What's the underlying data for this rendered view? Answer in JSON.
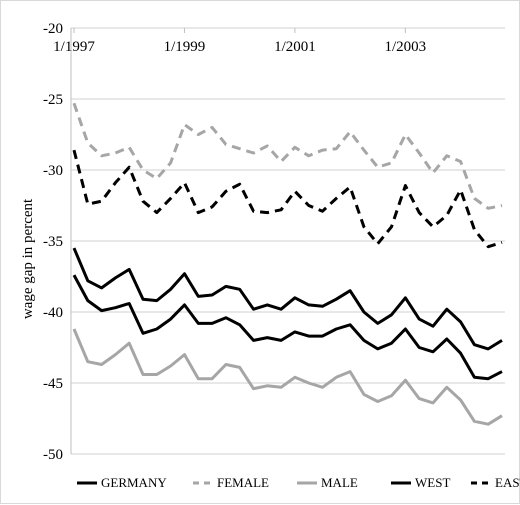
{
  "chart_data": {
    "type": "line",
    "title": "",
    "xlabel": "",
    "ylabel": "wage gap in percent",
    "ylim": [
      -50,
      -20
    ],
    "yticks": [
      -20,
      -25,
      -30,
      -35,
      -40,
      -45,
      -50
    ],
    "ytick_labels": [
      "-20",
      "-25",
      "-30",
      "-35",
      "-40",
      "-45",
      "-50"
    ],
    "xtick_labels": [
      "1/1997",
      "1/1999",
      "1/2001",
      "1/2003"
    ],
    "x_axis_position": "top",
    "grid": "horizontal",
    "legend_position": "bottom",
    "colors": {
      "GERMANY": "#000000",
      "FEMALE": "#a6a6a6",
      "MALE": "#a6a6a6",
      "WEST": "#000000",
      "EAST": "#000000"
    },
    "series": [
      {
        "name": "GERMANY",
        "style": "solid",
        "values": [
          -35.5,
          -37.8,
          -38.3,
          -37.6,
          -37.0,
          -39.1,
          -39.2,
          -38.4,
          -37.3,
          -38.9,
          -38.8,
          -38.2,
          -38.4,
          -39.8,
          -39.5,
          -39.8,
          -39.0,
          -39.5,
          -39.6,
          -39.1,
          -38.5,
          -40.0,
          -40.8,
          -40.2,
          -39.0,
          -40.5,
          -41.0,
          -39.8,
          -40.7,
          -42.3,
          -42.6,
          -42.0
        ]
      },
      {
        "name": "FEMALE",
        "style": "dashed",
        "values": [
          -25.3,
          -28.1,
          -29.0,
          -28.8,
          -28.4,
          -30.0,
          -30.6,
          -29.5,
          -26.8,
          -27.5,
          -27.0,
          -28.2,
          -28.5,
          -28.8,
          -28.3,
          -29.4,
          -28.4,
          -29.0,
          -28.6,
          -28.5,
          -27.3,
          -28.6,
          -29.8,
          -29.5,
          -27.5,
          -28.8,
          -30.2,
          -29.0,
          -29.4,
          -32.0,
          -32.7,
          -32.5
        ]
      },
      {
        "name": "MALE",
        "style": "solid",
        "values": [
          -41.2,
          -43.5,
          -43.7,
          -43.0,
          -42.2,
          -44.4,
          -44.4,
          -43.8,
          -43.0,
          -44.7,
          -44.7,
          -43.7,
          -43.9,
          -45.4,
          -45.2,
          -45.3,
          -44.6,
          -45.0,
          -45.3,
          -44.6,
          -44.2,
          -45.8,
          -46.3,
          -45.9,
          -44.8,
          -46.1,
          -46.4,
          -45.3,
          -46.2,
          -47.7,
          -47.9,
          -47.3
        ]
      },
      {
        "name": "WEST",
        "style": "solid",
        "values": [
          -37.4,
          -39.2,
          -39.9,
          -39.7,
          -39.4,
          -41.5,
          -41.2,
          -40.5,
          -39.5,
          -40.8,
          -40.8,
          -40.4,
          -40.9,
          -42.0,
          -41.8,
          -42.0,
          -41.4,
          -41.7,
          -41.7,
          -41.2,
          -40.9,
          -42.0,
          -42.6,
          -42.2,
          -41.2,
          -42.5,
          -42.8,
          -41.9,
          -42.9,
          -44.6,
          -44.7,
          -44.2
        ]
      },
      {
        "name": "EAST",
        "style": "dashed",
        "values": [
          -28.6,
          -32.4,
          -32.2,
          -30.9,
          -29.8,
          -32.2,
          -33.0,
          -32.0,
          -30.9,
          -33.0,
          -32.6,
          -31.5,
          -31.0,
          -32.9,
          -33.0,
          -32.8,
          -31.5,
          -32.5,
          -32.9,
          -32.0,
          -31.2,
          -34.0,
          -35.2,
          -34.0,
          -31.1,
          -33.0,
          -34.0,
          -33.2,
          -31.4,
          -34.2,
          -35.4,
          -35.1
        ]
      }
    ]
  }
}
